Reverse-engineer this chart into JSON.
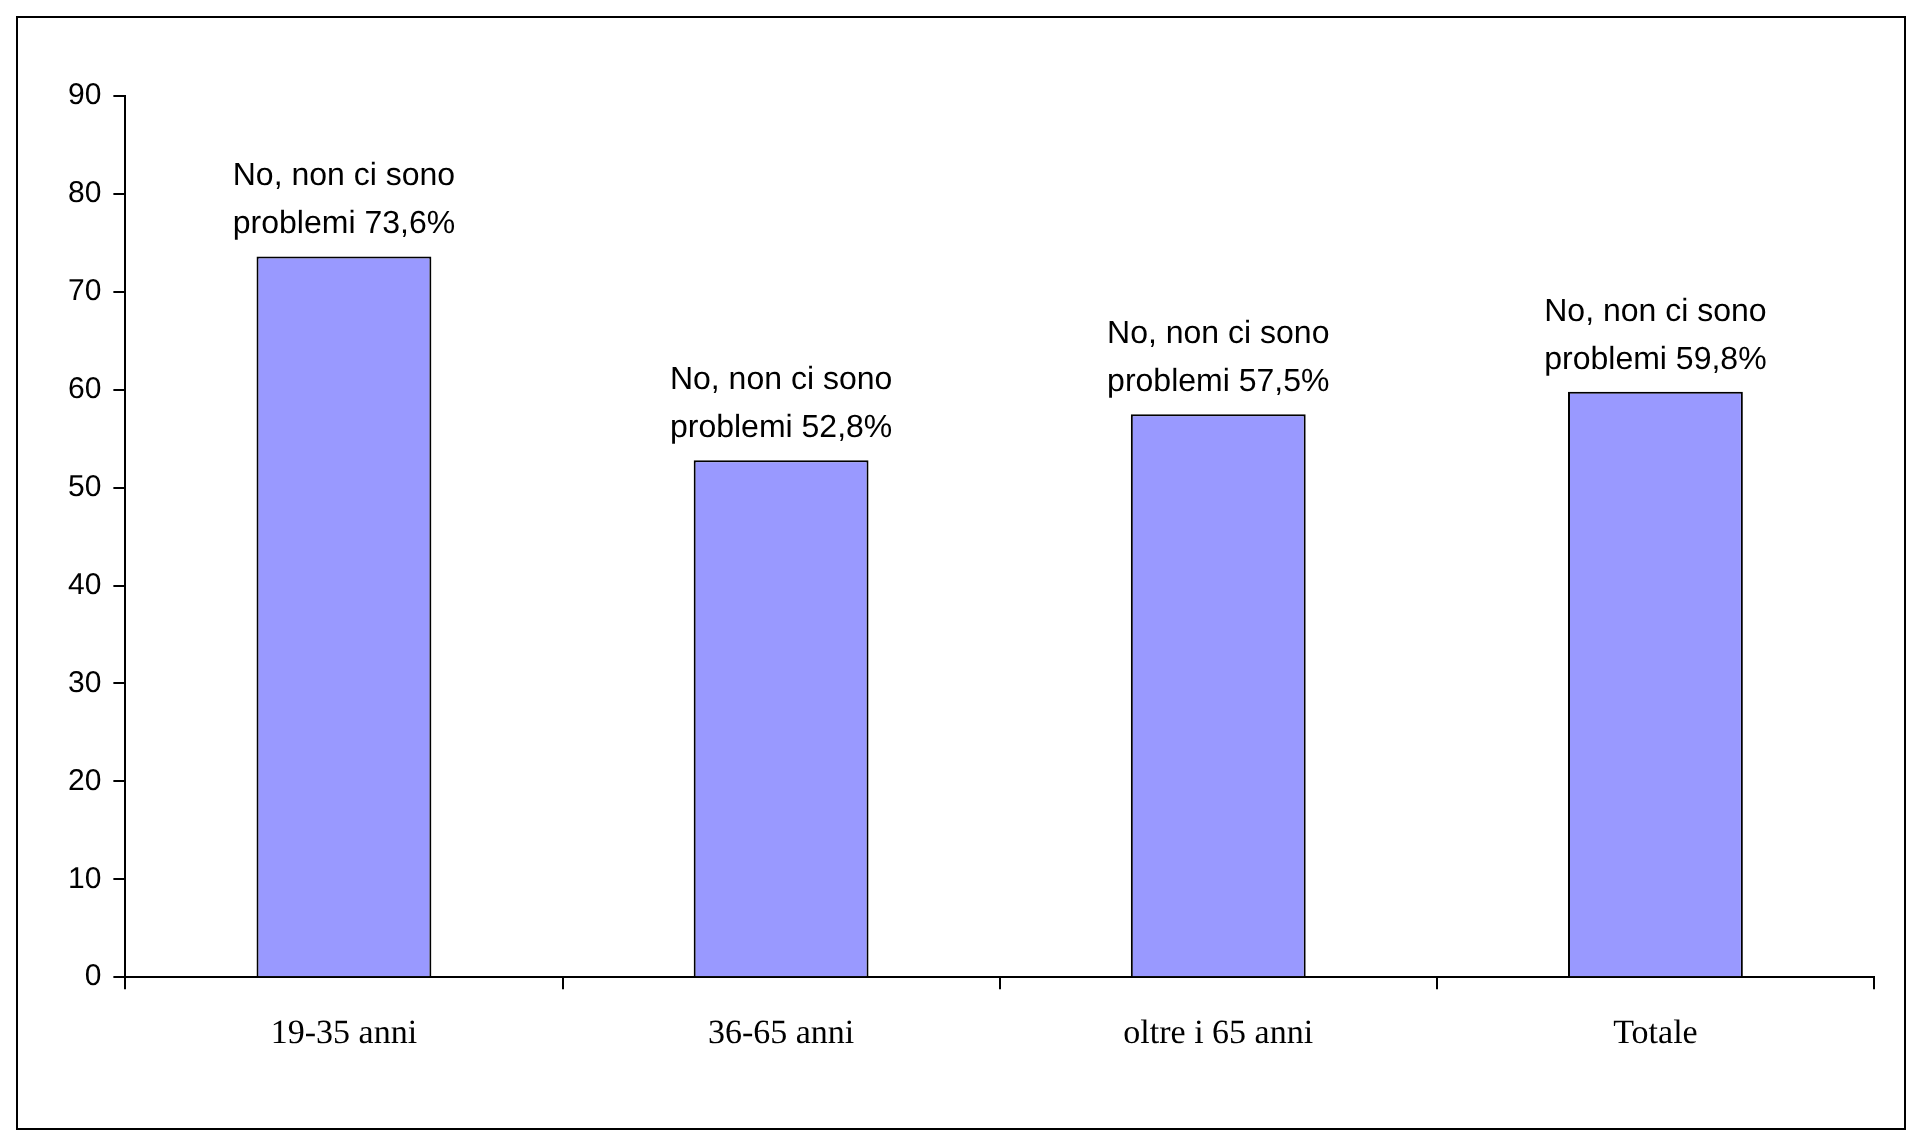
{
  "chart_data": {
    "type": "bar",
    "categories": [
      "19-35 anni",
      "36-65 anni",
      "oltre i 65 anni",
      "Totale"
    ],
    "values": [
      73.6,
      52.8,
      57.5,
      59.8
    ],
    "color": "#9999ff",
    "value_labels": [
      "No, non ci sono problemi 73,6%",
      "No, non ci sono problemi 52,8%",
      "No, non ci sono problemi 57,5%",
      "No, non ci sono problemi 59,8%"
    ],
    "ylim": [
      0,
      90
    ],
    "yticks": [
      0,
      10,
      20,
      30,
      40,
      50,
      60,
      70,
      80,
      90
    ],
    "grid": false,
    "legend": false
  }
}
